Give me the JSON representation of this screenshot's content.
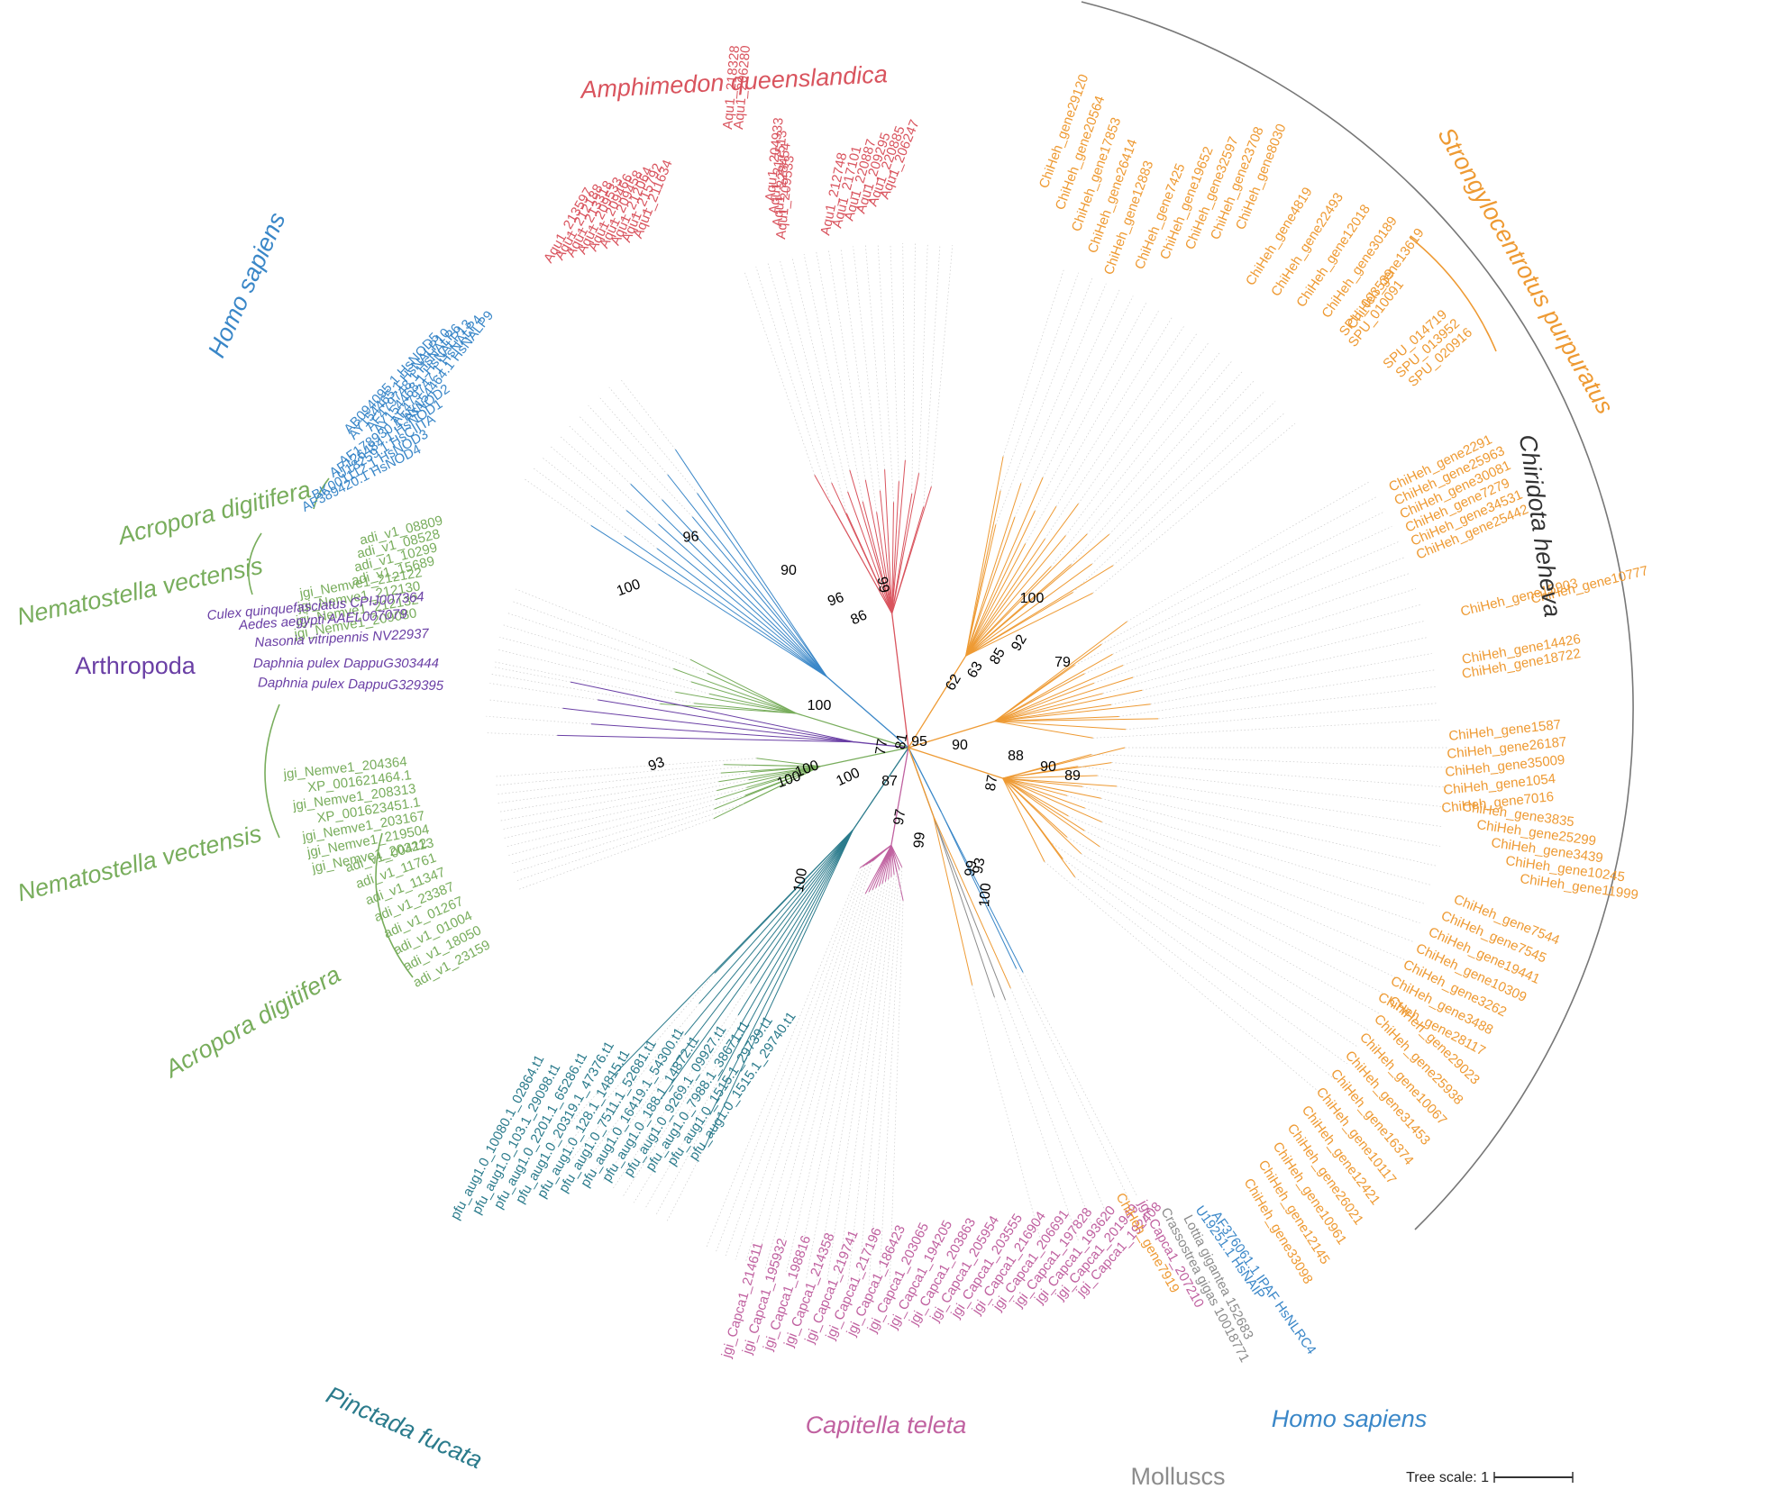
{
  "colors": {
    "homo": "#3a87c8",
    "amph": "#d9545e",
    "chir": "#ee9a33",
    "cnid": "#78ad5c",
    "arth": "#6a3fa5",
    "pinc": "#2b7b8c",
    "capi": "#c061a0",
    "moll": "#8c8c8c",
    "black": "#333333"
  },
  "groups": [
    {
      "key": "amph",
      "text": "Amphimedon queenslandica",
      "italic": true
    },
    {
      "key": "homo_top",
      "text": "Homo sapiens",
      "italic": true
    },
    {
      "key": "acro1",
      "text": "Acropora digitifera",
      "italic": true
    },
    {
      "key": "nema1",
      "text": "Nematostella vectensis",
      "italic": true
    },
    {
      "key": "arth",
      "text": "Arthropoda",
      "italic": false
    },
    {
      "key": "nema2",
      "text": "Nematostella vectensis",
      "italic": true
    },
    {
      "key": "acro2",
      "text": "Acropora digitifera",
      "italic": true
    },
    {
      "key": "pinc",
      "text": "Pinctada fucata",
      "italic": true
    },
    {
      "key": "capi",
      "text": "Capitella teleta",
      "italic": true
    },
    {
      "key": "moll",
      "text": "Molluscs",
      "italic": false
    },
    {
      "key": "homo_bot",
      "text": "Homo sapiens",
      "italic": true
    },
    {
      "key": "chir",
      "text": "Chiridota heheva",
      "italic": true
    },
    {
      "key": "stro",
      "text": "Strongylocentrotus purpuratus",
      "italic": true
    }
  ],
  "leaf_sets": {
    "amph": [
      "Aqu1_211634",
      "Aqu1_215792",
      "Aqu1_212064",
      "Aqu1_209458",
      "Aqu1_209466",
      "Aqu1_209533",
      "Aqu1_213318",
      "Aqu1_212188",
      "Aqu1_213597",
      "Aqu1_218328",
      "Aqu1_206280",
      "Aqu1_209533",
      "Aqu1_228454",
      "Aqu1_217513",
      "Aqu1_204933",
      "Aqu1_212748",
      "Aqu1_217101",
      "Aqu1_220887",
      "Aqu1_209295",
      "Aqu1_220885",
      "Aqu1_206247"
    ],
    "homo_top": [
      "AY154464.1 HsNALP9",
      "AF479747.1 HsNALP4",
      "AY154468.1 HsNALP13",
      "AF479748.1 HsNALP6",
      "AY154465.1 HsNALP10",
      "AB094095.1 HsNOD5",
      "AF178930.1 HsNOD2",
      "AF126484.1 HsNOD1",
      "U18259.1 HsCIITA",
      "BK001112.1 HsNOD3",
      "AF389420.1 HsNOD4"
    ],
    "cnid_top": [
      "adi_v1_08809",
      "adi_v1_08528",
      "adi_v1_10299",
      "adi_v1_15689",
      "jgi_Nemve1_212122",
      "jgi_Nemve1_212130",
      "jgi_Nemve1_212132",
      "jgi_Nemve1_209080"
    ],
    "arth": [
      "Culex quinquefasciatus CPIJ007364",
      "Aedes aegypti AAEL007079",
      "Nasonia vitripennis NV22937",
      "Daphnia pulex DappuG303444",
      "Daphnia pulex DappuG329395"
    ],
    "nema2": [
      "jgi_Nemve1_203213",
      "jgi_Nemve1_219504",
      "jgi_Nemve1_203167",
      "XP_001623451.1",
      "jgi_Nemve1_208313",
      "XP_001621464.1",
      "jgi_Nemve1_204364"
    ],
    "acro2": [
      "adi_v1_23159",
      "adi_v1_18050",
      "adi_v1_01004",
      "adi_v1_01267",
      "adi_v1_23387",
      "adi_v1_11347",
      "adi_v1_11761",
      "adi_v1_00412"
    ],
    "pinc": [
      "pfu_aug1.0_10080.1_02864.t1",
      "pfu_aug1.0_103.1_29098.t1",
      "pfu_aug1.0_2201.1_65286.t1",
      "pfu_aug1.0_20319.1_47376.t1",
      "pfu_aug1.0_128.1_14815.t1",
      "pfu_aug1.0_7511.1_52681.t1",
      "pfu_aug1.0_16419.1_54300.t1",
      "pfu_aug1.0_188.1_14872.t1",
      "pfu_aug1.0_9269.1_09927.t1",
      "pfu_aug1.0_7988.1_38671.t1",
      "pfu_aug1.0_1515.1_29739.t1",
      "pfu_aug1.0_1515.1_29740.t1"
    ],
    "capi": [
      "jgi_Capca1_214611",
      "jgi_Capca1_195932",
      "jgi_Capca1_198816",
      "jgi_Capca1_214358",
      "jgi_Capca1_219741",
      "jgi_Capca1_217196",
      "jgi_Capca1_186423",
      "jgi_Capca1_203065",
      "jgi_Capca1_194205",
      "jgi_Capca1_203863",
      "jgi_Capca1_205954",
      "jgi_Capca1_203555",
      "jgi_Capca1_216904",
      "jgi_Capca1_206691",
      "jgi_Capca1_197828",
      "jgi_Capca1_193620",
      "jgi_Capca1_201949",
      "jgi_Capca1_192408"
    ],
    "moll": [
      {
        "text": "ChiHeh_gene7919",
        "key": "chir"
      },
      {
        "text": "jgi_Capca1_207210",
        "key": "capi"
      },
      {
        "text": "Crassostrea gigas 10018771",
        "key": "moll"
      },
      {
        "text": "Lottia gigantea 152683",
        "key": "moll"
      }
    ],
    "homo_bot": [
      "U19251.1 HsNAIP",
      "AF376061.1 IPAF HsNLRC4"
    ],
    "chir_top": [
      "ChiHeh_gene29120",
      "ChiHeh_gene20564",
      "ChiHeh_gene17853",
      "ChiHeh_gene26414",
      "ChiHeh_gene12883",
      "ChiHeh_gene7425",
      "ChiHeh_gene19652",
      "ChiHeh_gene32597",
      "ChiHeh_gene23708",
      "ChiHeh_gene8030",
      "ChiHeh_gene4819",
      "ChiHeh_gene22493",
      "ChiHeh_gene12018",
      "ChiHeh_gene30189",
      "ChiHeh_gene13619"
    ],
    "stro": [
      "SPU_003539",
      "SPU_010091",
      "SPU_014719",
      "SPU_013952",
      "SPU_020916"
    ],
    "chir_right": [
      "ChiHeh_gene2291",
      "ChiHeh_gene25963",
      "ChiHeh_gene30081",
      "ChiHeh_gene7279",
      "ChiHeh_gene34531",
      "ChiHeh_gene25442",
      "ChiHeh_gene15903",
      "ChiHeh_gene10777",
      "ChiHeh_gene14426",
      "ChiHeh_gene18722",
      "ChiHeh_gene1587",
      "ChiHeh_gene26187",
      "ChiHeh_gene35009",
      "ChiHeh_gene1054",
      "ChiHeh_gene7016",
      "ChiHeh_gene3835",
      "ChiHeh_gene25299",
      "ChiHeh_gene3439",
      "ChiHeh_gene10245",
      "ChiHeh_gene11999",
      "ChiHeh_gene7544",
      "ChiHeh_gene7545",
      "ChiHeh_gene19441",
      "ChiHeh_gene10309",
      "ChiHeh_gene3262",
      "ChiHeh_gene3488",
      "ChiHeh_gene28117",
      "ChiHeh_gene29023",
      "ChiHeh_gene25938",
      "ChiHeh_gene10067",
      "ChiHeh_gene31453",
      "ChiHeh_gene16374",
      "ChiHeh_gene10117",
      "ChiHeh_gene12421",
      "ChiHeh_gene26021",
      "ChiHeh_gene10961",
      "ChiHeh_gene12145",
      "ChiHeh_gene33098"
    ]
  },
  "bootstrap": [
    "96",
    "100",
    "90",
    "99",
    "96",
    "86",
    "100",
    "62",
    "63",
    "85",
    "92",
    "100",
    "79",
    "95",
    "90",
    "88",
    "90",
    "89",
    "81",
    "77",
    "93",
    "87",
    "100",
    "87",
    "97",
    "99",
    "99",
    "100",
    "93",
    "100",
    "100",
    "100"
  ],
  "scale": {
    "label": "Tree scale: 1"
  }
}
